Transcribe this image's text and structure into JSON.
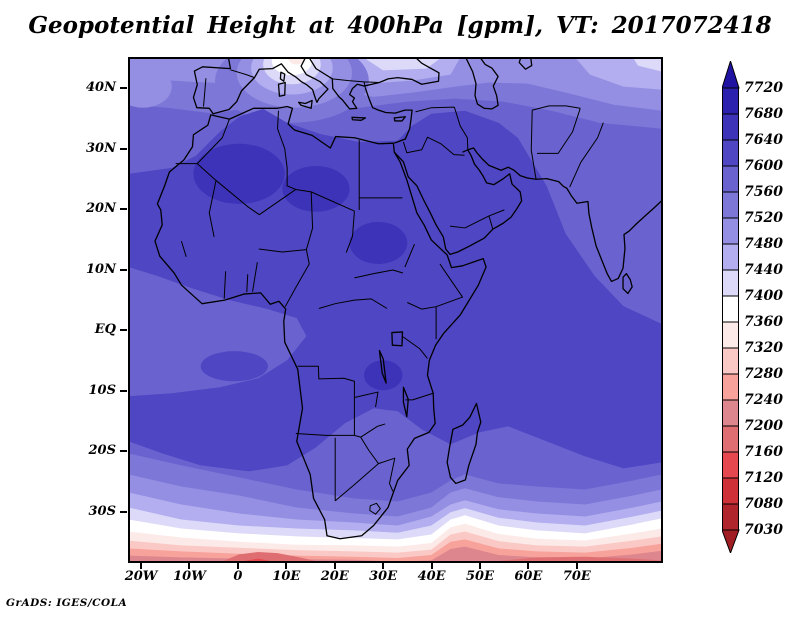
{
  "title": "Geopotential Height at 400hPa [gpm], VT: 2017072418",
  "attribution": "GrADS: IGES/COLA",
  "palette": [
    "#2113A2",
    "#2C20AE",
    "#3D33B9",
    "#4F46C3",
    "#6A63CF",
    "#7D77D8",
    "#948FE2",
    "#B2AEEF",
    "#DCDAF8",
    "#FFFFFF",
    "#FCEAE8",
    "#FBC9C5",
    "#F8A29C",
    "#DD868D",
    "#DE6E72",
    "#E5484F",
    "#CE3238",
    "#B0252B",
    "#A01D24"
  ],
  "chart_data": {
    "type": "heatmap",
    "title": "Geopotential Height at 400hPa [gpm], VT: 2017072418",
    "variable": "Geopotential Height",
    "pressure_level": "400hPa",
    "units": "gpm",
    "valid_time": "2017072418",
    "projection": "lat-lon",
    "lon_range_deg": [
      -22.7,
      87.8
    ],
    "lat_range_deg": [
      -38.4,
      45.1
    ],
    "grid": false,
    "lat_ticks": [
      {
        "label": "40N",
        "deg": 40
      },
      {
        "label": "30N",
        "deg": 30
      },
      {
        "label": "20N",
        "deg": 20
      },
      {
        "label": "10N",
        "deg": 10
      },
      {
        "label": "EQ",
        "deg": 0
      },
      {
        "label": "10S",
        "deg": -10
      },
      {
        "label": "20S",
        "deg": -20
      },
      {
        "label": "30S",
        "deg": -30
      }
    ],
    "lon_ticks": [
      {
        "label": "20W",
        "deg": -20
      },
      {
        "label": "10W",
        "deg": -10
      },
      {
        "label": "0",
        "deg": 0
      },
      {
        "label": "10E",
        "deg": 10
      },
      {
        "label": "20E",
        "deg": 20
      },
      {
        "label": "30E",
        "deg": 30
      },
      {
        "label": "40E",
        "deg": 40
      },
      {
        "label": "50E",
        "deg": 50
      },
      {
        "label": "60E",
        "deg": 60
      },
      {
        "label": "70E",
        "deg": 70
      }
    ],
    "colorbar": {
      "orientation": "vertical",
      "position": "right",
      "arrows": "both",
      "levels": [
        7720,
        7680,
        7640,
        7600,
        7560,
        7520,
        7480,
        7440,
        7400,
        7360,
        7320,
        7280,
        7240,
        7200,
        7160,
        7120,
        7080,
        7030
      ]
    },
    "field_summary": {
      "max": "~7660 gpm over the western Sahara (20N-30N)",
      "min": "< 7030 gpm along the southern edge (south of 37S)",
      "notes": "Heights 7600-7680 over North Africa and Arabia; local minimum ~7360-7400 over northern Italy; strong southward gradient to below 7200 south of 35S with a trough of low heights near 45E"
    }
  }
}
